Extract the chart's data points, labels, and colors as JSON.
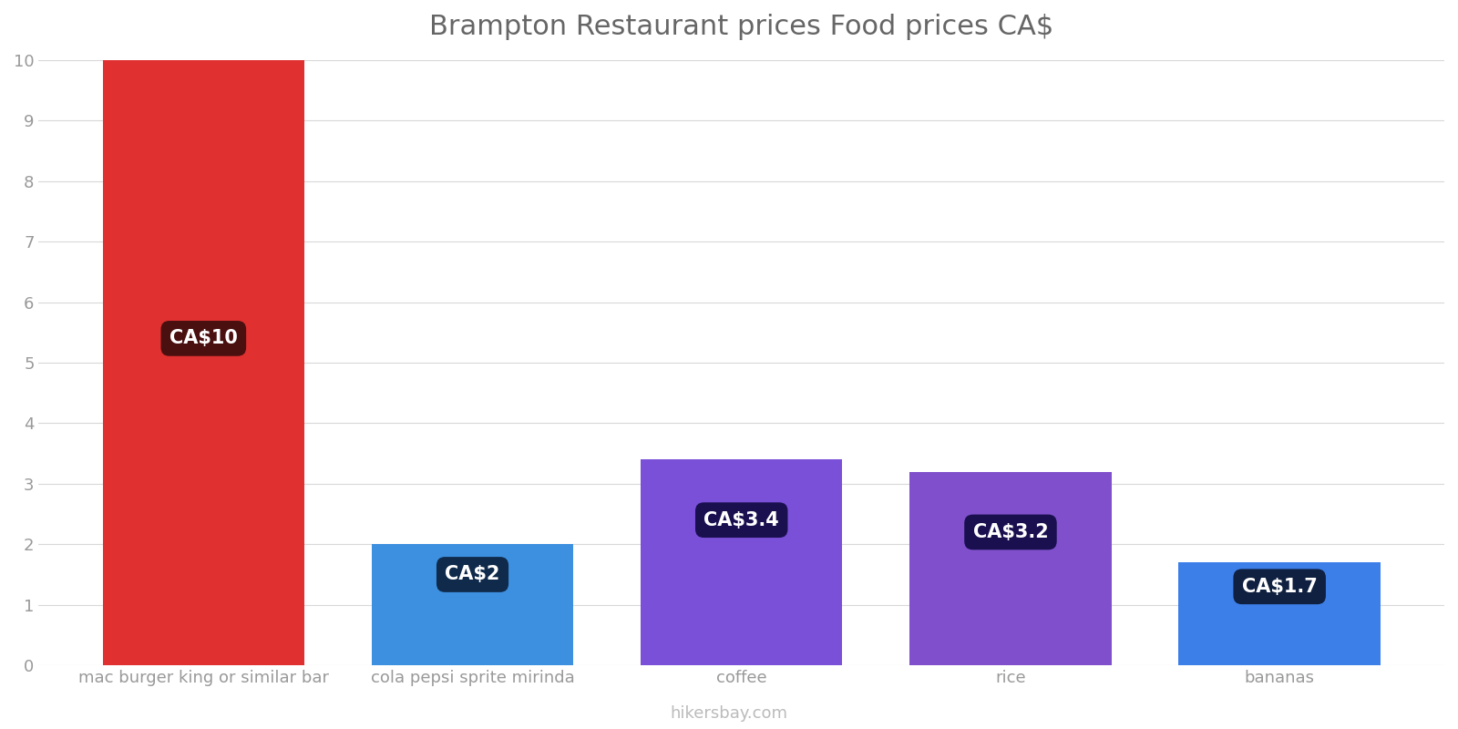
{
  "title": "Brampton Restaurant prices Food prices CA$",
  "categories": [
    "mac burger king or similar bar",
    "cola pepsi sprite mirinda",
    "coffee",
    "rice",
    "bananas"
  ],
  "values": [
    10,
    2,
    3.4,
    3.2,
    1.7
  ],
  "bar_colors": [
    "#e03030",
    "#3d8fe0",
    "#7b50d8",
    "#8050cc",
    "#3d7fe8"
  ],
  "label_box_colors": [
    "#4a1010",
    "#0f2a4a",
    "#1a1050",
    "#1a1050",
    "#0f2040"
  ],
  "labels": [
    "CA$10",
    "CA$2",
    "CA$3.4",
    "CA$3.2",
    "CA$1.7"
  ],
  "ylim": [
    0,
    10
  ],
  "yticks": [
    0,
    1,
    2,
    3,
    4,
    5,
    6,
    7,
    8,
    9,
    10
  ],
  "title_fontsize": 22,
  "background_color": "#ffffff",
  "grid_color": "#d8d8d8",
  "watermark": "hikersbay.com",
  "label_y_offsets": [
    5.4,
    1.5,
    2.4,
    2.2,
    1.3
  ]
}
